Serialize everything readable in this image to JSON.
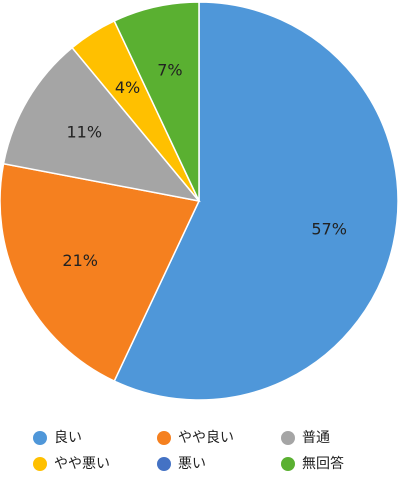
{
  "chart_data": {
    "type": "pie",
    "categories": [
      "良い",
      "やや良い",
      "普通",
      "やや悪い",
      "悪い",
      "無回答"
    ],
    "values": [
      57,
      21,
      11,
      4,
      0,
      7
    ],
    "value_labels": [
      "57%",
      "21%",
      "11%",
      "4%",
      null,
      "7%"
    ],
    "colors": [
      "#4f97d9",
      "#f5801f",
      "#a5a5a5",
      "#ffc000",
      "#4472c4",
      "#5ab031"
    ]
  }
}
